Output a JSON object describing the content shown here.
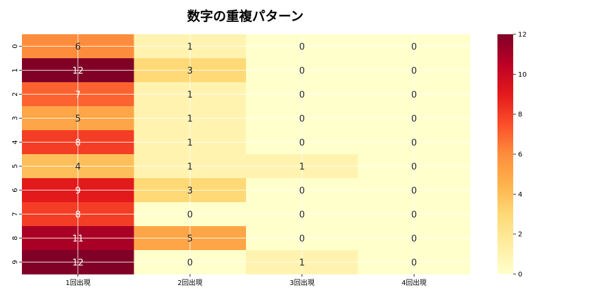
{
  "chart_data": {
    "type": "heatmap",
    "title": "数字の重複パターン",
    "xlabel": "",
    "ylabel": "",
    "x_categories": [
      "1回出現",
      "2回出現",
      "3回出現",
      "4回出現"
    ],
    "y_categories": [
      "0",
      "1",
      "2",
      "3",
      "4",
      "5",
      "6",
      "7",
      "8",
      "9"
    ],
    "values": [
      [
        6,
        1,
        0,
        0
      ],
      [
        12,
        3,
        0,
        0
      ],
      [
        7,
        1,
        0,
        0
      ],
      [
        5,
        1,
        0,
        0
      ],
      [
        8,
        1,
        0,
        0
      ],
      [
        4,
        1,
        1,
        0
      ],
      [
        9,
        3,
        0,
        0
      ],
      [
        8,
        0,
        0,
        0
      ],
      [
        11,
        5,
        0,
        0
      ],
      [
        12,
        0,
        1,
        0
      ]
    ],
    "colormap": "YlOrRd",
    "colorbar": {
      "range": [
        0,
        12
      ],
      "ticks": [
        "0",
        "2",
        "4",
        "6",
        "8",
        "10",
        "12"
      ]
    },
    "annotations": true,
    "grid": true
  }
}
